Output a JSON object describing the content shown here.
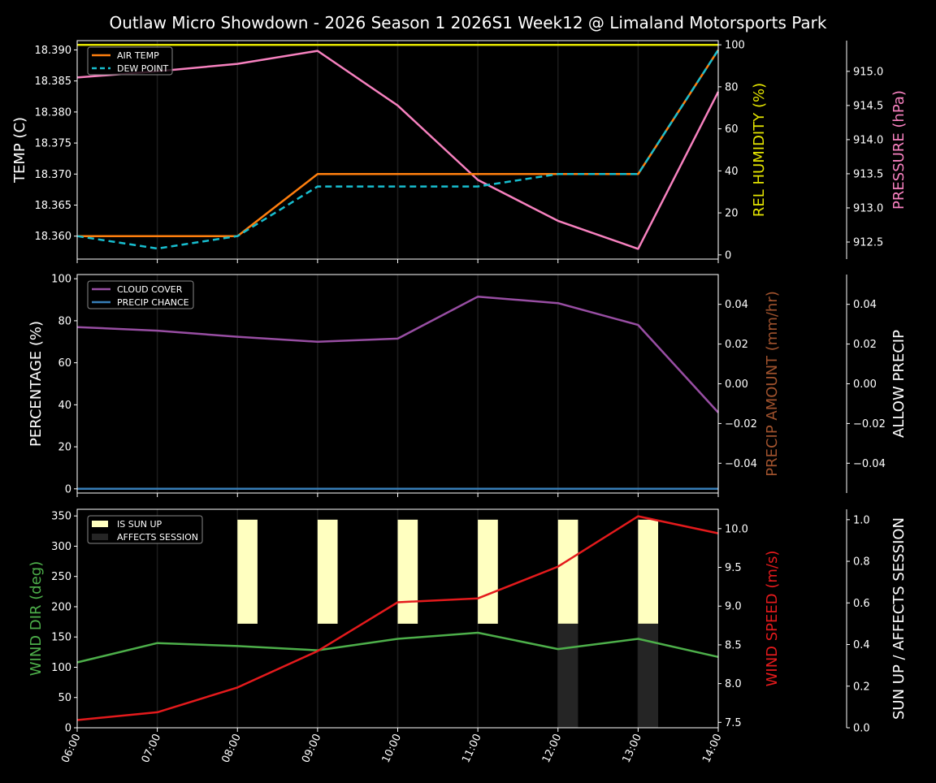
{
  "title": "Outlaw Micro Showdown - 2026 Season 1 2026S1 Week12 @ Limaland Motorsports Park",
  "x_ticks": [
    "06:00",
    "07:00",
    "08:00",
    "09:00",
    "10:00",
    "11:00",
    "12:00",
    "13:00",
    "14:00"
  ],
  "colors": {
    "air_temp": "#ff7f0e",
    "dew_point": "#17becf",
    "humidity": "#e5e500",
    "pressure": "#f781bf",
    "cloud_cover": "#984ea3",
    "precip_chance": "#377eb8",
    "precip_amount_label": "#a0522d",
    "wind_dir": "#4daf4a",
    "wind_speed": "#e41a1c",
    "sun_up": "#ffffc0",
    "affects_session": "#252525"
  },
  "panels": {
    "temp": {
      "ylabel_left": "TEMP (C)",
      "ylabel_right1": "REL HUMIDITY (%)",
      "ylabel_right2": "PRESSURE (hPa)",
      "left_ticks": [
        "18.360",
        "18.365",
        "18.370",
        "18.375",
        "18.380",
        "18.385",
        "18.390"
      ],
      "right1_ticks": [
        "0",
        "20",
        "40",
        "60",
        "80",
        "100"
      ],
      "right2_ticks": [
        "912.5",
        "913.0",
        "913.5",
        "914.0",
        "914.5",
        "915.0"
      ],
      "legend": [
        "AIR TEMP",
        "DEW POINT"
      ]
    },
    "precip": {
      "ylabel_left": "PERCENTAGE (%)",
      "ylabel_right1": "PRECIP AMOUNT (mm/hr)",
      "ylabel_right2": "ALLOW PRECIP",
      "left_ticks": [
        "0",
        "20",
        "40",
        "60",
        "80",
        "100"
      ],
      "right1_ticks": [
        "−0.04",
        "−0.02",
        "0.00",
        "0.02",
        "0.04"
      ],
      "right2_ticks": [
        "−0.04",
        "−0.02",
        "0.00",
        "0.02",
        "0.04"
      ],
      "legend": [
        "CLOUD COVER",
        "PRECIP CHANCE"
      ]
    },
    "wind": {
      "ylabel_left": "WIND DIR (deg)",
      "ylabel_right1": "WIND SPEED (m/s)",
      "ylabel_right2": "SUN UP / AFFECTS SESSION",
      "left_ticks": [
        "0",
        "50",
        "100",
        "150",
        "200",
        "250",
        "300",
        "350"
      ],
      "right1_ticks": [
        "7.5",
        "8.0",
        "8.5",
        "9.0",
        "9.5",
        "10.0"
      ],
      "right2_ticks": [
        "0.0",
        "0.2",
        "0.4",
        "0.6",
        "0.8",
        "1.0"
      ],
      "legend": [
        "IS SUN UP",
        "AFFECTS SESSION"
      ]
    }
  },
  "chart_data": [
    {
      "type": "line",
      "title": "Outlaw Micro Showdown - 2026 Season 1 2026S1 Week12 @ Limaland Motorsports Park",
      "x": [
        "06:00",
        "07:00",
        "08:00",
        "09:00",
        "10:00",
        "11:00",
        "12:00",
        "13:00",
        "14:00"
      ],
      "xlabel": "",
      "ylabel": "TEMP (C)",
      "ylim": [
        18.3563,
        18.3915
      ],
      "series": [
        {
          "name": "AIR TEMP",
          "axis": "left",
          "values": [
            18.36,
            18.36,
            18.36,
            18.37,
            18.37,
            18.37,
            18.37,
            18.37,
            18.39
          ]
        },
        {
          "name": "DEW POINT",
          "axis": "left",
          "style": "dashed",
          "values": [
            18.36,
            18.358,
            18.36,
            18.368,
            18.368,
            18.368,
            18.37,
            18.37,
            18.39
          ]
        },
        {
          "name": "REL HUMIDITY (%)",
          "axis": "right1",
          "ylim": [
            -2,
            102
          ],
          "values": [
            100,
            100,
            100,
            100,
            100,
            100,
            100,
            100,
            100
          ]
        },
        {
          "name": "PRESSURE (hPa)",
          "axis": "right2",
          "ylim": [
            912.25,
            915.45
          ],
          "values": [
            914.91,
            915.0,
            915.11,
            915.3,
            914.5,
            913.41,
            912.81,
            912.4,
            914.7
          ]
        }
      ],
      "legend_position": "upper left"
    },
    {
      "type": "line",
      "x": [
        "06:00",
        "07:00",
        "08:00",
        "09:00",
        "10:00",
        "11:00",
        "12:00",
        "13:00",
        "14:00"
      ],
      "ylabel": "PERCENTAGE (%)",
      "ylim": [
        -2,
        102
      ],
      "series": [
        {
          "name": "CLOUD COVER",
          "axis": "left",
          "values": [
            77.0,
            75.3,
            72.4,
            70.0,
            71.5,
            91.5,
            88.4,
            78.0,
            36.3
          ]
        },
        {
          "name": "PRECIP CHANCE",
          "axis": "left",
          "values": [
            0,
            0,
            0,
            0,
            0,
            0,
            0,
            0,
            0
          ]
        },
        {
          "name": "PRECIP AMOUNT (mm/hr)",
          "axis": "right1",
          "ylim": [
            -0.055,
            0.055
          ],
          "values": []
        },
        {
          "name": "ALLOW PRECIP",
          "axis": "right2",
          "ylim": [
            -0.055,
            0.055
          ],
          "values": []
        }
      ],
      "legend_position": "upper left"
    },
    {
      "type": "line",
      "x": [
        "06:00",
        "07:00",
        "08:00",
        "09:00",
        "10:00",
        "11:00",
        "12:00",
        "13:00",
        "14:00"
      ],
      "ylabel": "WIND DIR (deg)",
      "ylim": [
        0,
        360
      ],
      "series": [
        {
          "name": "WIND DIR (deg)",
          "axis": "left",
          "values": [
            108,
            140,
            135,
            128,
            147,
            157,
            130,
            147,
            117
          ]
        },
        {
          "name": "WIND SPEED (m/s)",
          "axis": "right1",
          "ylim": [
            7.43,
            10.25
          ],
          "values": [
            7.53,
            7.63,
            7.95,
            8.42,
            9.05,
            9.1,
            9.51,
            10.16,
            9.94
          ]
        },
        {
          "name": "IS SUN UP",
          "axis": "right2",
          "type": "bar",
          "ylim": [
            0,
            1.05
          ],
          "bottom": 0.5,
          "values": [
            0,
            0,
            0.5,
            0.5,
            0.5,
            0.5,
            0.5,
            0.5,
            0
          ]
        },
        {
          "name": "AFFECTS SESSION",
          "axis": "right2",
          "type": "bar",
          "ylim": [
            0,
            1.05
          ],
          "values": [
            0,
            0,
            0,
            0,
            0,
            0,
            0.5,
            0.5,
            0
          ]
        }
      ],
      "legend_position": "upper left"
    }
  ]
}
